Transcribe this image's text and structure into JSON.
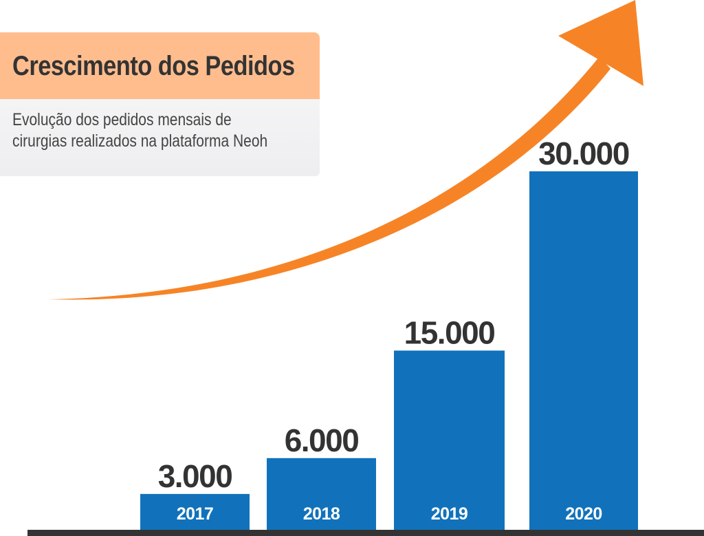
{
  "header": {
    "title": "Crescimento dos Pedidos",
    "subtitle": "Evolução dos pedidos mensais de\ncirurgias realizados na plataforma Neoh"
  },
  "colors": {
    "bar": "#1172bb",
    "arrow": "#f68426",
    "title_background": "#ffbd8e",
    "subtitle_background": "#f1f1f2",
    "value_text": "#333333",
    "category_text": "#ffffff",
    "baseline": "#333333"
  },
  "chart_data": {
    "type": "bar",
    "title": "Crescimento dos Pedidos",
    "subtitle": "Evolução dos pedidos mensais de cirurgias realizados na plataforma Neoh",
    "xlabel": "",
    "ylabel": "",
    "categories": [
      "2017",
      "2018",
      "2019",
      "2020"
    ],
    "values": [
      3000,
      6000,
      15000,
      30000
    ],
    "value_labels": [
      "3.000",
      "6.000",
      "15.000",
      "30.000"
    ],
    "ylim": [
      0,
      30000
    ],
    "grid": false,
    "legend": "none",
    "trend_arrow": true
  }
}
